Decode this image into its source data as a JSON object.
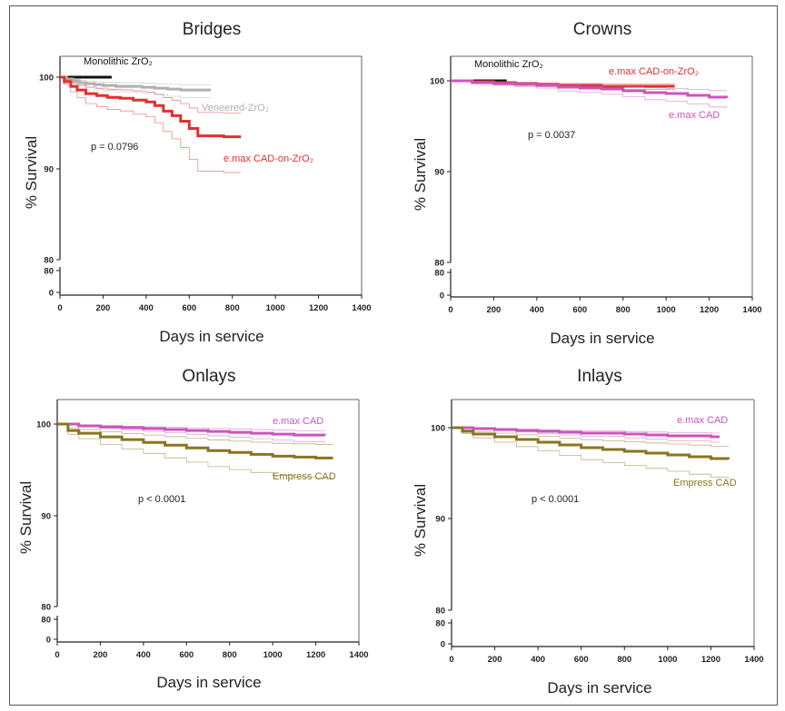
{
  "chart_data": [
    {
      "type": "line",
      "title": "Bridges",
      "xlabel": "Days in service",
      "ylabel": "% Survival",
      "xlim": [
        0,
        1400
      ],
      "x_ticks": [
        0,
        200,
        400,
        600,
        800,
        1000,
        1200,
        1400
      ],
      "y_ticks": [
        80,
        90,
        100
      ],
      "axis_break_ticks": [
        0,
        80
      ],
      "pvalue": "p = 0.0796",
      "series": [
        {
          "name": "Monolithic ZrO₂",
          "color": "#111111",
          "x": [
            0,
            30,
            60,
            100,
            150,
            200,
            240
          ],
          "y": [
            100,
            100,
            100,
            100,
            100,
            100,
            100
          ]
        },
        {
          "name": "Veneered-ZrO₂",
          "color": "#b0b0b0",
          "x": [
            0,
            30,
            60,
            90,
            120,
            160,
            200,
            260,
            320,
            380,
            440,
            500,
            560,
            620,
            700
          ],
          "y": [
            100,
            99.8,
            99.6,
            99.4,
            99.3,
            99.2,
            99.1,
            99.0,
            99.0,
            98.9,
            98.8,
            98.7,
            98.6,
            98.6,
            98.6
          ]
        },
        {
          "name": "e.max CAD-on-ZrO₂",
          "color": "#e03030",
          "x": [
            0,
            20,
            50,
            80,
            120,
            170,
            220,
            280,
            340,
            400,
            440,
            480,
            520,
            560,
            600,
            640,
            700,
            760,
            840
          ],
          "y": [
            100,
            99.5,
            99.0,
            98.6,
            98.2,
            98.0,
            97.8,
            97.7,
            97.5,
            97.3,
            96.9,
            96.3,
            95.8,
            95.2,
            94.4,
            93.6,
            93.6,
            93.5,
            93.5
          ]
        }
      ]
    },
    {
      "type": "line",
      "title": "Crowns",
      "xlabel": "Days in service",
      "ylabel": "% Survival",
      "xlim": [
        0,
        1400
      ],
      "x_ticks": [
        0,
        200,
        400,
        600,
        800,
        1000,
        1200,
        1400
      ],
      "y_ticks": [
        80,
        90,
        100
      ],
      "axis_break_ticks": [
        0,
        80
      ],
      "pvalue": "p = 0.0037",
      "series": [
        {
          "name": "Monolithic ZrO₂",
          "color": "#111111",
          "x": [
            0,
            50,
            100,
            150,
            200,
            260
          ],
          "y": [
            100,
            100,
            100,
            100,
            100,
            100
          ]
        },
        {
          "name": "e.max CAD-on-ZrO₂",
          "color": "#e03030",
          "x": [
            0,
            100,
            200,
            300,
            400,
            500,
            600,
            700,
            800,
            900,
            1040
          ],
          "y": [
            100,
            99.9,
            99.8,
            99.7,
            99.6,
            99.5,
            99.5,
            99.4,
            99.4,
            99.4,
            99.4
          ]
        },
        {
          "name": "e.max CAD",
          "color": "#cc55bb",
          "x": [
            0,
            100,
            200,
            300,
            400,
            500,
            600,
            700,
            800,
            900,
            1000,
            1100,
            1200,
            1280
          ],
          "y": [
            100,
            99.8,
            99.7,
            99.6,
            99.5,
            99.3,
            99.2,
            99.1,
            98.9,
            98.7,
            98.6,
            98.4,
            98.2,
            98.1
          ]
        }
      ]
    },
    {
      "type": "line",
      "title": "Onlays",
      "xlabel": "Days in service",
      "ylabel": "% Survival",
      "xlim": [
        0,
        1400
      ],
      "x_ticks": [
        0,
        200,
        400,
        600,
        800,
        1000,
        1200,
        1400
      ],
      "y_ticks": [
        80,
        90,
        100
      ],
      "axis_break_ticks": [
        0,
        80
      ],
      "pvalue": "p < 0.0001",
      "series": [
        {
          "name": "e.max CAD",
          "color": "#cc55bb",
          "x": [
            0,
            100,
            200,
            300,
            400,
            500,
            600,
            700,
            800,
            900,
            1000,
            1100,
            1240
          ],
          "y": [
            100,
            99.8,
            99.7,
            99.6,
            99.5,
            99.4,
            99.3,
            99.2,
            99.1,
            99.0,
            98.9,
            98.8,
            98.7
          ]
        },
        {
          "name": "Empress CAD",
          "color": "#8a7520",
          "x": [
            0,
            50,
            100,
            200,
            300,
            400,
            500,
            600,
            700,
            800,
            900,
            1000,
            1100,
            1200,
            1280
          ],
          "y": [
            100,
            99.3,
            99.0,
            98.6,
            98.3,
            98.0,
            97.7,
            97.4,
            97.1,
            96.9,
            96.7,
            96.5,
            96.4,
            96.3,
            96.3
          ]
        }
      ]
    },
    {
      "type": "line",
      "title": "Inlays",
      "xlabel": "Days in service",
      "ylabel": "% Survival",
      "xlim": [
        0,
        1400
      ],
      "x_ticks": [
        0,
        200,
        400,
        600,
        800,
        1000,
        1200,
        1400
      ],
      "y_ticks": [
        80,
        90,
        100
      ],
      "axis_break_ticks": [
        0,
        80
      ],
      "pvalue": "p < 0.0001",
      "series": [
        {
          "name": "e.max CAD",
          "color": "#cc55bb",
          "x": [
            0,
            100,
            200,
            300,
            400,
            500,
            600,
            700,
            800,
            900,
            1000,
            1100,
            1200,
            1240
          ],
          "y": [
            100,
            99.9,
            99.8,
            99.7,
            99.6,
            99.5,
            99.4,
            99.4,
            99.3,
            99.2,
            99.1,
            99.1,
            99.0,
            99.0
          ]
        },
        {
          "name": "Empress CAD",
          "color": "#8a7520",
          "x": [
            0,
            50,
            100,
            200,
            300,
            400,
            500,
            600,
            700,
            800,
            900,
            1000,
            1100,
            1200,
            1280
          ],
          "y": [
            100,
            99.6,
            99.3,
            99.0,
            98.7,
            98.4,
            98.1,
            97.8,
            97.6,
            97.4,
            97.2,
            97.0,
            96.8,
            96.6,
            96.5
          ]
        }
      ]
    }
  ]
}
